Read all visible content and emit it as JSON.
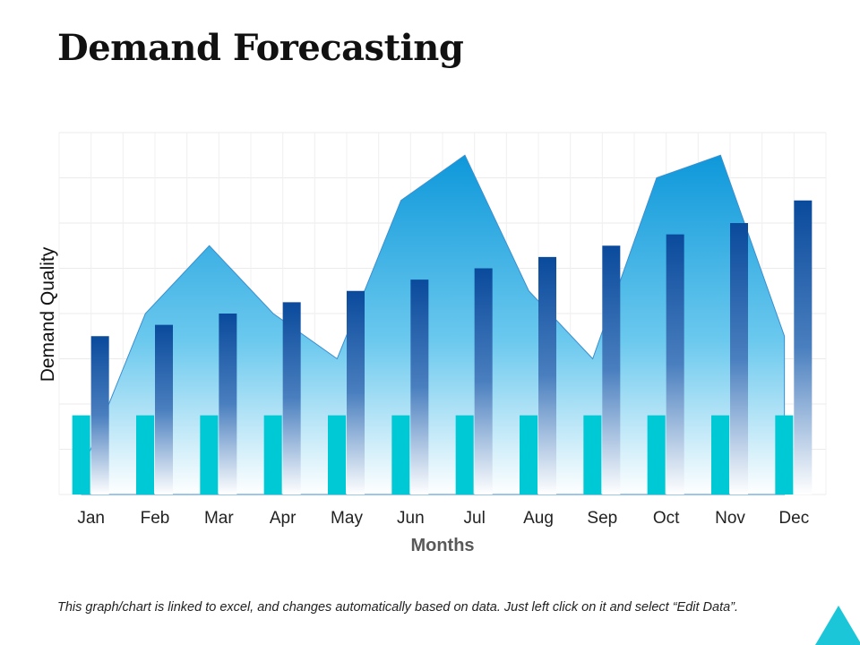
{
  "chart_data": {
    "type": "bar",
    "title": "Demand Forecasting",
    "xlabel": "Months",
    "ylabel": "Demand Quality",
    "categories": [
      "Jan",
      "Feb",
      "Mar",
      "Apr",
      "May",
      "Jun",
      "Jul",
      "Aug",
      "Sep",
      "Oct",
      "Nov",
      "Dec"
    ],
    "ylim": [
      0,
      8
    ],
    "grid": true,
    "series": [
      {
        "kind": "bar",
        "color": "#00c9d6",
        "values": [
          1.75,
          1.75,
          1.75,
          1.75,
          1.75,
          1.75,
          1.75,
          1.75,
          1.75,
          1.75,
          1.75,
          1.75
        ]
      },
      {
        "kind": "bar",
        "color": "#0a4fa0",
        "values": [
          3.5,
          3.75,
          4.0,
          4.25,
          4.5,
          4.75,
          5.0,
          5.25,
          5.5,
          5.75,
          6.0,
          6.5
        ]
      },
      {
        "kind": "area",
        "color": "#1a9fdc",
        "values": [
          0.5,
          4.0,
          5.5,
          4.0,
          3.0,
          6.5,
          7.5,
          4.5,
          3.0,
          7.0,
          7.5,
          3.5
        ]
      }
    ]
  },
  "footnote": "This graph/chart is linked to excel, and changes automatically based on data. Just left click on it and select “Edit Data”.",
  "colors": {
    "corner_accent": "#1ac6d8"
  }
}
